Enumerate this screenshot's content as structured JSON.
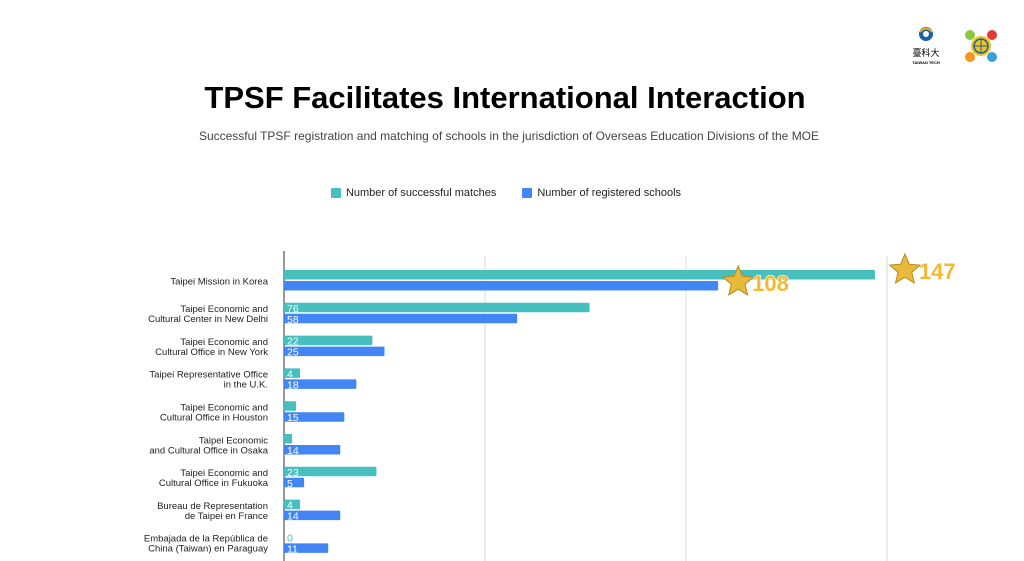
{
  "title": "TPSF Facilitates International Interaction",
  "subtitle": "Successful TPSF registration and matching of schools in the jurisdiction of Overseas Education Divisions of the MOE",
  "logos": {
    "taiwan_tech_chars": "臺科大",
    "taiwan_tech_text": "TAIWAN TECH"
  },
  "chart_data": {
    "type": "bar",
    "orientation": "horizontal",
    "title": "TPSF Facilitates International Interaction",
    "subtitle": "Successful TPSF registration and matching of schools in the jurisdiction of Overseas Education Divisions of the MOE",
    "legend_position": "top",
    "grid": true,
    "xlim": [
      0,
      150
    ],
    "categories": [
      [
        "Taipei Mission in Korea"
      ],
      [
        "Taipei Economic and",
        "Cultural Center in New Delhi"
      ],
      [
        "Taipei Economic and",
        "Cultural Office in New York"
      ],
      [
        "Taipei Representative Office",
        "in the U.K."
      ],
      [
        "Taipei Economic and",
        "Cultural Office in Houston"
      ],
      [
        "Taipei Economic",
        "and Cultural Office in Osaka"
      ],
      [
        "Taipei Economic and",
        "Cultural Office in Fukuoka"
      ],
      [
        "Bureau de Representation",
        "de Taipei en France"
      ],
      [
        "Embajada de la República de",
        "China (Taiwan) en Paraguay"
      ]
    ],
    "series": [
      {
        "name": "Number of successful matches",
        "color": "#47bfbf",
        "values": [
          147,
          76,
          22,
          4,
          3,
          2,
          23,
          4,
          0
        ],
        "labels": [
          "147",
          "76",
          "22",
          "4",
          "3",
          "2",
          "23",
          "4",
          "0"
        ]
      },
      {
        "name": "Number of registered schools",
        "color": "#4285f4",
        "values": [
          108,
          58,
          25,
          18,
          15,
          14,
          5,
          14,
          11
        ],
        "labels": [
          "108",
          "58",
          "25",
          "18",
          "15",
          "14",
          "5",
          "14",
          "11"
        ]
      }
    ],
    "highlight_icon": "star-icon"
  }
}
